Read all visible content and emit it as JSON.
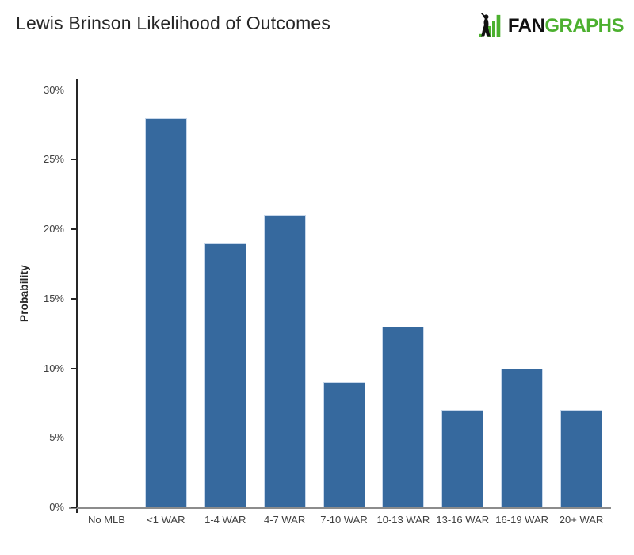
{
  "header": {
    "title": "Lewis Brinson Likelihood of Outcomes"
  },
  "logo": {
    "fan": "FAN",
    "graphs": "GRAPHS",
    "green": "#4cb02f",
    "black": "#111111"
  },
  "chart_data": {
    "type": "bar",
    "title": "Lewis Brinson Likelihood of Outcomes",
    "categories": [
      "No MLB",
      "<1 WAR",
      "1-4 WAR",
      "4-7 WAR",
      "7-10 WAR",
      "10-13 WAR",
      "13-16 WAR",
      "16-19 WAR",
      "20+ WAR"
    ],
    "values": [
      0,
      28,
      19,
      21,
      9,
      13,
      7,
      10,
      7
    ],
    "xlabel": "",
    "ylabel": "Probability",
    "ylim": [
      0,
      30.8
    ],
    "yticks": [
      0,
      5,
      10,
      15,
      20,
      25,
      30
    ],
    "ytick_labels": [
      "0%",
      "5%",
      "10%",
      "15%",
      "20%",
      "25%",
      "30%"
    ],
    "grid": false,
    "legend": "none",
    "bar_color": "#36699e",
    "bar_border_color": "#c7d7ea",
    "y_axis_color": "#262626",
    "x_axis_color": "#8c8c8c"
  }
}
